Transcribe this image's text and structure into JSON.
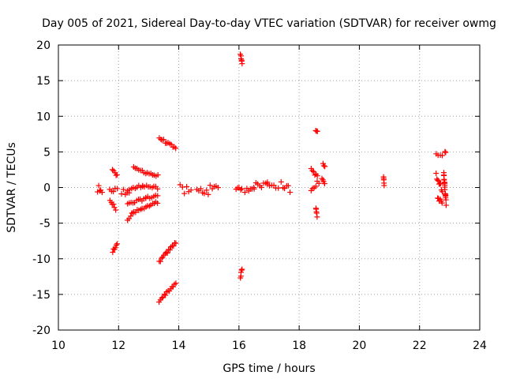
{
  "chart_data": {
    "type": "scatter",
    "title": "Day 005 of 2021, Sidereal Day-to-day VTEC variation (SDTVAR) for receiver owmg",
    "xlabel": "GPS time / hours",
    "ylabel": "SDTVAR / TECUs",
    "xlim": [
      10,
      24
    ],
    "ylim": [
      -20,
      20
    ],
    "xticks": [
      10,
      12,
      14,
      16,
      18,
      20,
      22,
      24
    ],
    "yticks": [
      -20,
      -15,
      -10,
      -5,
      0,
      5,
      10,
      15,
      20
    ],
    "xtick_labels": [
      "10",
      "12",
      "14",
      "16",
      "18",
      "20",
      "22",
      "24"
    ],
    "ytick_labels": [
      "-20",
      "-15",
      "-10",
      "-5",
      "0",
      "5",
      "10",
      "15",
      "20"
    ],
    "grid": true,
    "marker": "plus",
    "color": "#ff0000",
    "segments": [
      {
        "x": [
          11.3,
          11.45
        ],
        "y": [
          -0.3,
          -1.2
        ],
        "spread": 1.6
      },
      {
        "x": [
          11.7,
          11.95
        ],
        "y": [
          -0.1,
          -0.5
        ],
        "spread": 1.0
      },
      {
        "x": [
          11.72,
          11.9
        ],
        "y": [
          -1.8,
          -3.0
        ],
        "spread": 0.5
      },
      {
        "x": [
          11.8,
          11.95
        ],
        "y": [
          2.6,
          1.6
        ],
        "spread": 0.5
      },
      {
        "x": [
          11.8,
          11.95
        ],
        "y": [
          -9.0,
          -7.8
        ],
        "spread": 0.4
      },
      {
        "x": [
          12.1,
          12.35
        ],
        "y": [
          -0.8,
          -0.3
        ],
        "spread": 0.9
      },
      {
        "x": [
          12.3,
          12.5
        ],
        "y": [
          -4.5,
          -3.5
        ],
        "spread": 0.4
      },
      {
        "x": [
          12.45,
          13.3
        ],
        "y": [
          -3.6,
          -2.1
        ],
        "spread": 0.4
      },
      {
        "x": [
          12.3,
          12.9
        ],
        "y": [
          -2.4,
          -1.5
        ],
        "spread": 0.4
      },
      {
        "x": [
          12.9,
          13.3
        ],
        "y": [
          -1.5,
          -1.1
        ],
        "spread": 0.4
      },
      {
        "x": [
          12.3,
          12.8
        ],
        "y": [
          -0.4,
          0.3
        ],
        "spread": 0.4
      },
      {
        "x": [
          12.8,
          13.3
        ],
        "y": [
          0.3,
          -0.1
        ],
        "spread": 0.4
      },
      {
        "x": [
          12.5,
          13.3
        ],
        "y": [
          2.7,
          1.6
        ],
        "spread": 0.4
      },
      {
        "x": [
          13.35,
          13.9
        ],
        "y": [
          7.0,
          5.4
        ],
        "spread": 0.4
      },
      {
        "x": [
          13.35,
          13.9
        ],
        "y": [
          -10.4,
          -7.7
        ],
        "spread": 0.4
      },
      {
        "x": [
          13.35,
          13.9
        ],
        "y": [
          -15.9,
          -13.4
        ],
        "spread": 0.4
      },
      {
        "x": [
          14.05,
          14.4
        ],
        "y": [
          -0.3,
          -0.6
        ],
        "spread": 1.4
      },
      {
        "x": [
          14.6,
          15.3
        ],
        "y": [
          -0.5,
          -0.2
        ],
        "spread": 1.3
      },
      {
        "x": [
          15.9,
          16.1
        ],
        "y": [
          0.5,
          -0.5
        ],
        "spread": 2.0
      },
      {
        "x": [
          16.05,
          16.1
        ],
        "y": [
          18.8,
          17.3
        ],
        "spread": 0.3
      },
      {
        "x": [
          16.05,
          16.1
        ],
        "y": [
          -12.6,
          -11.4
        ],
        "spread": 0.3
      },
      {
        "x": [
          16.2,
          16.5
        ],
        "y": [
          -0.3,
          0.2
        ],
        "spread": 0.9
      },
      {
        "x": [
          16.5,
          16.95
        ],
        "y": [
          0.2,
          0.5
        ],
        "spread": 1.0
      },
      {
        "x": [
          16.95,
          17.3
        ],
        "y": [
          0.5,
          0.3
        ],
        "spread": 0.9
      },
      {
        "x": [
          17.4,
          17.7
        ],
        "y": [
          0.4,
          -0.3
        ],
        "spread": 0.9
      },
      {
        "x": [
          18.4,
          18.6
        ],
        "y": [
          2.6,
          1.5
        ],
        "spread": 0.4
      },
      {
        "x": [
          18.4,
          18.65
        ],
        "y": [
          -0.4,
          0.6
        ],
        "spread": 1.5
      },
      {
        "x": [
          18.55,
          18.6
        ],
        "y": [
          8.0,
          7.8
        ],
        "spread": 0.2
      },
      {
        "x": [
          18.55,
          18.6
        ],
        "y": [
          -2.8,
          -4.0
        ],
        "spread": 0.3
      },
      {
        "x": [
          18.8,
          18.85
        ],
        "y": [
          3.3,
          3.0
        ],
        "spread": 0.2
      },
      {
        "x": [
          18.75,
          18.85
        ],
        "y": [
          1.4,
          0.6
        ],
        "spread": 0.5
      },
      {
        "x": [
          20.8,
          20.82
        ],
        "y": [
          1.5,
          0.4
        ],
        "spread": 0.3
      },
      {
        "x": [
          22.55,
          22.75
        ],
        "y": [
          4.8,
          4.4
        ],
        "spread": 0.3
      },
      {
        "x": [
          22.55,
          22.75
        ],
        "y": [
          1.8,
          -0.2
        ],
        "spread": 0.8
      },
      {
        "x": [
          22.6,
          22.75
        ],
        "y": [
          -1.2,
          -2.4
        ],
        "spread": 0.6
      },
      {
        "x": [
          22.85,
          22.87
        ],
        "y": [
          5.0,
          4.9
        ],
        "spread": 0.1
      },
      {
        "x": [
          22.8,
          22.88
        ],
        "y": [
          2.2,
          -2.2
        ],
        "spread": 0.6
      }
    ]
  }
}
